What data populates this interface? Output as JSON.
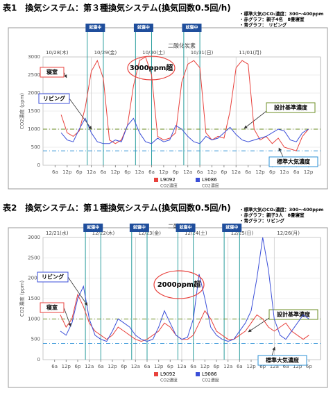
{
  "sections": [
    {
      "heading": "表1　換気システム：第３種換気システム(換気回数0.5回/h)",
      "notes": [
        "・標準大気のCO₂濃度：300～400ppm",
        "・赤グラフ：親子4名　8畳寝室",
        "・青グラフ：　リビング"
      ]
    },
    {
      "heading": "表2　換気システム：第１種換気システム(換気回数0.5回/h)",
      "notes": [
        "・標準大気のCO₂濃度：300～400ppm",
        "・赤グラフ：親子3人　8畳寝室",
        "・青グラフ：リビング"
      ]
    }
  ],
  "chart_data": [
    {
      "type": "line",
      "title": "二酸化炭素",
      "ylabel": "CO2濃度 (ppm)",
      "xlim": [
        0,
        138
      ],
      "ylim": [
        0,
        3000
      ],
      "yticks": [
        0,
        500,
        1000,
        1500,
        2000,
        2500,
        3000
      ],
      "xticks": [
        {
          "value": 6,
          "label": "6a"
        },
        {
          "value": 12,
          "label": "12p"
        },
        {
          "value": 18,
          "label": "6p"
        },
        {
          "value": 24,
          "label": "12a"
        },
        {
          "value": 30,
          "label": "6a"
        },
        {
          "value": 36,
          "label": "12p"
        },
        {
          "value": 42,
          "label": "6p"
        },
        {
          "value": 48,
          "label": "12a"
        },
        {
          "value": 54,
          "label": "6a"
        },
        {
          "value": 60,
          "label": "12p"
        },
        {
          "value": 66,
          "label": "6p"
        },
        {
          "value": 72,
          "label": "12a"
        },
        {
          "value": 78,
          "label": "6a"
        },
        {
          "value": 84,
          "label": "12p"
        },
        {
          "value": 90,
          "label": "6p"
        },
        {
          "value": 96,
          "label": "12a"
        },
        {
          "value": 102,
          "label": "6a"
        },
        {
          "value": 108,
          "label": "12p"
        },
        {
          "value": 114,
          "label": "6p"
        },
        {
          "value": 120,
          "label": "12a"
        },
        {
          "value": 126,
          "label": "6a"
        },
        {
          "value": 132,
          "label": "12p"
        }
      ],
      "date_labels": [
        {
          "value": 0,
          "label": "10/28(木)"
        },
        {
          "value": 24,
          "label": "10/29(金)"
        },
        {
          "value": 48,
          "label": "10/30(土)"
        },
        {
          "value": 72,
          "label": "10/31(日)"
        },
        {
          "value": 96,
          "label": "11/01(月)"
        }
      ],
      "x": [
        9,
        12,
        15,
        18,
        21,
        24,
        27,
        30,
        33,
        36,
        39,
        42,
        45,
        48,
        51,
        54,
        57,
        60,
        63,
        66,
        69,
        72,
        75,
        78,
        81,
        84,
        87,
        90,
        93,
        96,
        99,
        102,
        105,
        108,
        111,
        114,
        117,
        120,
        123,
        126,
        129,
        132
      ],
      "series": [
        {
          "name": "L9092",
          "unit_label": "CO2濃度",
          "color": "#e8413c",
          "values": [
            1400,
            900,
            800,
            950,
            1600,
            2600,
            2900,
            2400,
            700,
            600,
            700,
            1100,
            2200,
            2900,
            3000,
            2500,
            800,
            700,
            750,
            900,
            2300,
            2800,
            2900,
            2700,
            900,
            700,
            800,
            750,
            1500,
            2700,
            2900,
            2800,
            1000,
            700,
            800,
            600,
            750,
            500,
            450,
            400,
            800,
            1000
          ]
        },
        {
          "name": "L9086",
          "unit_label": "CO2濃度",
          "color": "#3b4fd8",
          "values": [
            900,
            700,
            650,
            1000,
            1300,
            900,
            650,
            600,
            600,
            700,
            650,
            1100,
            1300,
            900,
            650,
            600,
            750,
            650,
            700,
            1100,
            1000,
            800,
            650,
            600,
            800,
            700,
            750,
            900,
            1050,
            850,
            700,
            650,
            700,
            750,
            800,
            900,
            1000,
            950,
            700,
            650,
            900,
            1000
          ]
        }
      ],
      "sleep_periods": [
        {
          "label": "就寝中",
          "start": 22,
          "end": 30
        },
        {
          "label": "就寝中",
          "start": 46,
          "end": 54
        },
        {
          "label": "就寝中",
          "start": 70,
          "end": 78
        }
      ],
      "reference_lines": [
        {
          "label": "設計基準濃度",
          "value": 1000,
          "color": "#6b8e23"
        },
        {
          "label": "標準大気濃度",
          "value": 400,
          "color": "#2a8fd6"
        }
      ],
      "callouts": [
        {
          "text": "3000ppm超",
          "color": "#e8413c"
        },
        {
          "text": "寝室",
          "color": "#e8413c"
        },
        {
          "text": "リビング",
          "color": "#3b4fd8"
        }
      ]
    },
    {
      "type": "line",
      "title": "二酸化炭素",
      "ylabel": "CO2濃度 (ppm)",
      "xlim": [
        0,
        144
      ],
      "ylim": [
        0,
        3000
      ],
      "yticks": [
        0,
        500,
        1000,
        1500,
        2000,
        2500,
        3000
      ],
      "xticks": [
        {
          "value": 6,
          "label": "6a"
        },
        {
          "value": 12,
          "label": "12p"
        },
        {
          "value": 18,
          "label": "6p"
        },
        {
          "value": 24,
          "label": "12a"
        },
        {
          "value": 30,
          "label": "6a"
        },
        {
          "value": 36,
          "label": "12p"
        },
        {
          "value": 42,
          "label": "6p"
        },
        {
          "value": 48,
          "label": "12a"
        },
        {
          "value": 54,
          "label": "6a"
        },
        {
          "value": 60,
          "label": "12p"
        },
        {
          "value": 66,
          "label": "6p"
        },
        {
          "value": 72,
          "label": "12a"
        },
        {
          "value": 78,
          "label": "6a"
        },
        {
          "value": 84,
          "label": "12p"
        },
        {
          "value": 90,
          "label": "6p"
        },
        {
          "value": 96,
          "label": "12a"
        },
        {
          "value": 102,
          "label": "6a"
        },
        {
          "value": 108,
          "label": "12p"
        },
        {
          "value": 114,
          "label": "6p"
        },
        {
          "value": 120,
          "label": "12a"
        },
        {
          "value": 126,
          "label": "6a"
        },
        {
          "value": 132,
          "label": "12p"
        },
        {
          "value": 138,
          "label": "6p"
        }
      ],
      "date_labels": [
        {
          "value": 0,
          "label": "12/21(水)"
        },
        {
          "value": 24,
          "label": "12/22(木)"
        },
        {
          "value": 48,
          "label": "12/23(金)"
        },
        {
          "value": 72,
          "label": "12/24(土)"
        },
        {
          "value": 96,
          "label": "12/25(日)"
        },
        {
          "value": 120,
          "label": "12/26(月)"
        }
      ],
      "x": [
        9,
        12,
        15,
        18,
        21,
        24,
        27,
        30,
        33,
        36,
        39,
        42,
        45,
        48,
        51,
        54,
        57,
        60,
        63,
        66,
        69,
        72,
        75,
        78,
        81,
        84,
        87,
        90,
        93,
        96,
        99,
        102,
        105,
        108,
        111,
        114,
        117,
        120,
        123,
        126,
        129,
        132,
        135,
        138
      ],
      "series": [
        {
          "name": "L9092",
          "unit_label": "CO2濃度",
          "color": "#e8413c",
          "values": [
            1100,
            800,
            1000,
            1600,
            1300,
            900,
            700,
            600,
            500,
            600,
            800,
            700,
            600,
            500,
            450,
            500,
            600,
            700,
            900,
            800,
            600,
            500,
            500,
            600,
            900,
            1200,
            1000,
            700,
            600,
            500,
            500,
            600,
            700,
            900,
            1100,
            1000,
            800,
            700,
            800,
            900,
            700,
            600,
            500,
            600
          ]
        },
        {
          "name": "L9086",
          "unit_label": "CO2濃度",
          "color": "#3b4fd8",
          "values": [
            700,
            600,
            900,
            1500,
            1800,
            1000,
            600,
            500,
            450,
            700,
            1000,
            900,
            800,
            600,
            500,
            450,
            500,
            800,
            1200,
            900,
            600,
            500,
            550,
            1000,
            2100,
            1500,
            800,
            600,
            500,
            450,
            500,
            700,
            900,
            1200,
            2000,
            3000,
            2200,
            1000,
            600,
            500,
            700,
            900,
            1100,
            1000
          ]
        }
      ],
      "sleep_periods": [
        {
          "label": "就寝中",
          "start": 22,
          "end": 30
        },
        {
          "label": "就寝中",
          "start": 46,
          "end": 54
        },
        {
          "label": "就寝中",
          "start": 70,
          "end": 78
        },
        {
          "label": "就寝中",
          "start": 94,
          "end": 102
        }
      ],
      "reference_lines": [
        {
          "label": "設計基準濃度",
          "value": 1000,
          "color": "#6b8e23"
        },
        {
          "label": "標準大気濃度",
          "value": 400,
          "color": "#2a8fd6"
        }
      ],
      "callouts": [
        {
          "text": "2000ppm超",
          "color": "#e8413c"
        },
        {
          "text": "リビング",
          "color": "#3b4fd8"
        },
        {
          "text": "寝室",
          "color": "#e8413c"
        }
      ]
    }
  ]
}
